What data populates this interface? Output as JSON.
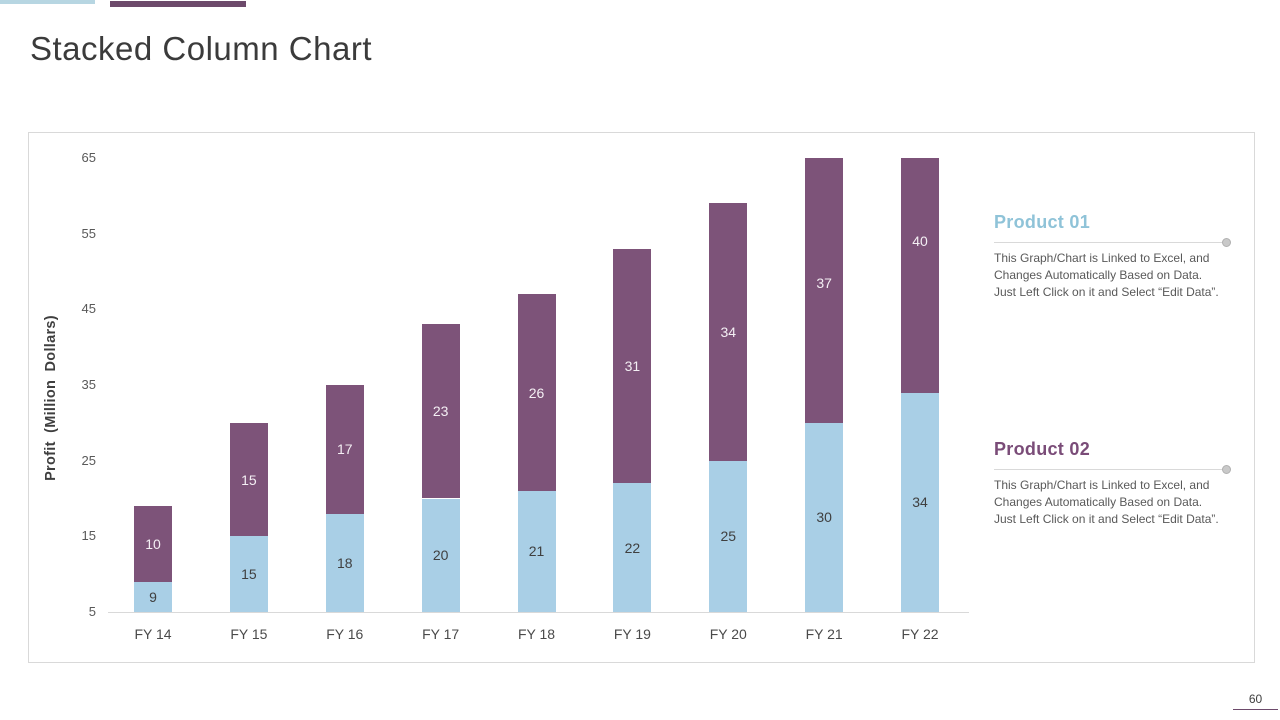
{
  "header": {
    "title": "Stacked Column Chart"
  },
  "colors": {
    "accent_blue": "#b7d6e2",
    "accent_purple": "#6d4a6b",
    "footer_rule": "#6d4a6b"
  },
  "chart_data": {
    "type": "bar",
    "stacked": true,
    "title": "",
    "xlabel": "",
    "ylabel": "Profit (Million Dollars)",
    "categories": [
      "FY 14",
      "FY 15",
      "FY 16",
      "FY 17",
      "FY 18",
      "FY 19",
      "FY 20",
      "FY 21",
      "FY 22"
    ],
    "series": [
      {
        "name": "Product 01",
        "color": "#a9cfe6",
        "label_color": "#3f3f3f",
        "values": [
          9,
          15,
          18,
          20,
          21,
          22,
          25,
          30,
          34
        ]
      },
      {
        "name": "Product 02",
        "color": "#7d5379",
        "label_color": "#f4eff4",
        "values": [
          10,
          15,
          17,
          23,
          26,
          31,
          34,
          37,
          40
        ]
      }
    ],
    "yticks": [
      5,
      15,
      25,
      35,
      45,
      55,
      65
    ],
    "ylim": [
      5,
      65
    ],
    "grid": false,
    "data_labels": true,
    "legend_position": "right-panel",
    "note": "bars exceeding ymax are clipped at top of plot area"
  },
  "legend": {
    "items": [
      {
        "title": "Product 01",
        "title_color": "#8fc3d8",
        "description": "This Graph/Chart is Linked to Excel, and Changes Automatically Based on Data. Just Left Click on it and Select “Edit Data”."
      },
      {
        "title": "Product 02",
        "title_color": "#7a4c78",
        "description": "This Graph/Chart is Linked to Excel, and Changes Automatically Based on Data. Just Left Click on it and Select “Edit Data”."
      }
    ]
  },
  "footer": {
    "page_number": "60"
  }
}
